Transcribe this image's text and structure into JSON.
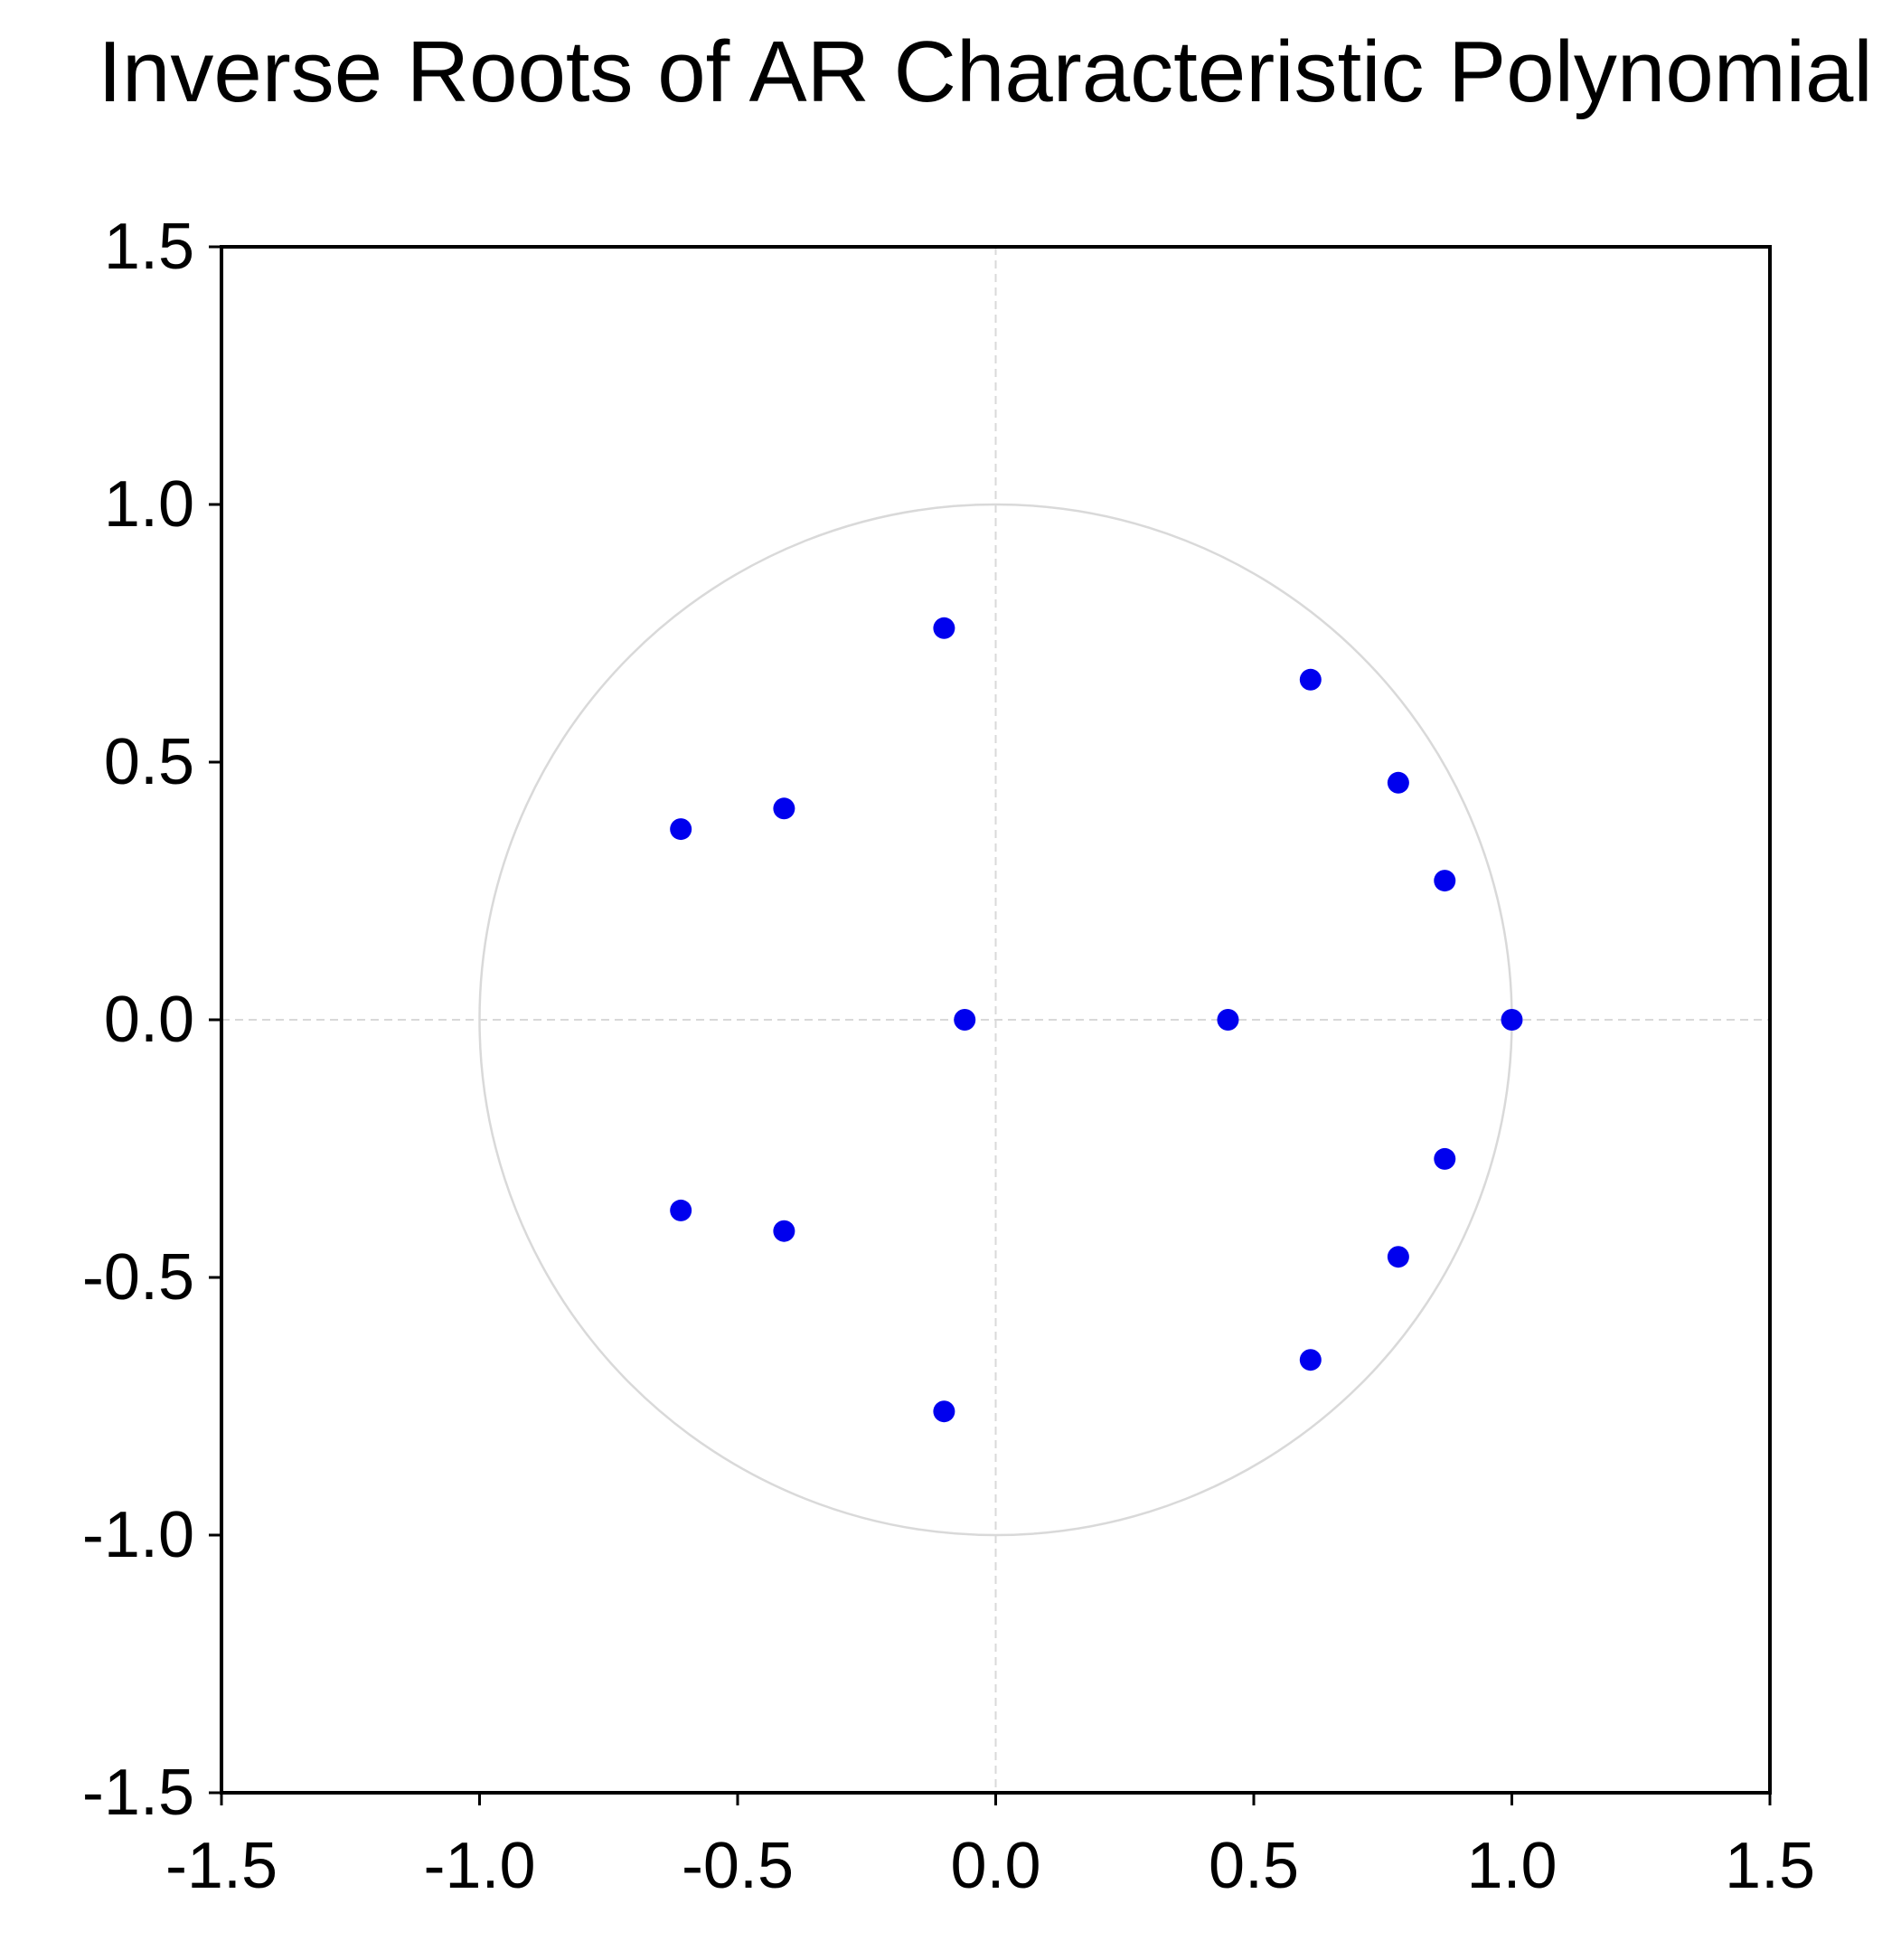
{
  "chart_data": {
    "type": "scatter",
    "title": "Inverse Roots of AR Characteristic Polynomial",
    "xlabel": "",
    "ylabel": "",
    "xlim": [
      -1.5,
      1.5
    ],
    "ylim": [
      -1.5,
      1.5
    ],
    "x_ticks": [
      -1.5,
      -1.0,
      -0.5,
      0.0,
      0.5,
      1.0,
      1.5
    ],
    "y_ticks": [
      1.5,
      1.0,
      0.5,
      0.0,
      -0.5,
      -1.0,
      -1.5
    ],
    "x_tick_labels": [
      "-1.5",
      "-1.0",
      "-0.5",
      "0.0",
      "0.5",
      "1.0",
      "1.5"
    ],
    "y_tick_labels": [
      "1.5",
      "1.0",
      "0.5",
      "0.0",
      "-0.5",
      "-1.0",
      "-1.5"
    ],
    "unit_circle": true,
    "reference_lines": "dashed zero axes",
    "grid": false,
    "legend": "none",
    "colors": {
      "points": "#0000ee",
      "circle": "#d9d9d9",
      "zero_lines": "#d9d9d9",
      "frame": "#000000"
    },
    "points": [
      {
        "x": -0.1,
        "y": 0.76
      },
      {
        "x": -0.1,
        "y": -0.76
      },
      {
        "x": 0.61,
        "y": 0.66
      },
      {
        "x": 0.61,
        "y": -0.66
      },
      {
        "x": 0.78,
        "y": 0.46
      },
      {
        "x": 0.78,
        "y": -0.46
      },
      {
        "x": 0.87,
        "y": 0.27
      },
      {
        "x": 0.87,
        "y": -0.27
      },
      {
        "x": 1.0,
        "y": 0.0
      },
      {
        "x": 0.45,
        "y": 0.0
      },
      {
        "x": -0.06,
        "y": 0.0
      },
      {
        "x": -0.61,
        "y": 0.37
      },
      {
        "x": -0.61,
        "y": -0.37
      },
      {
        "x": -0.41,
        "y": 0.41
      },
      {
        "x": -0.41,
        "y": -0.41
      }
    ]
  }
}
